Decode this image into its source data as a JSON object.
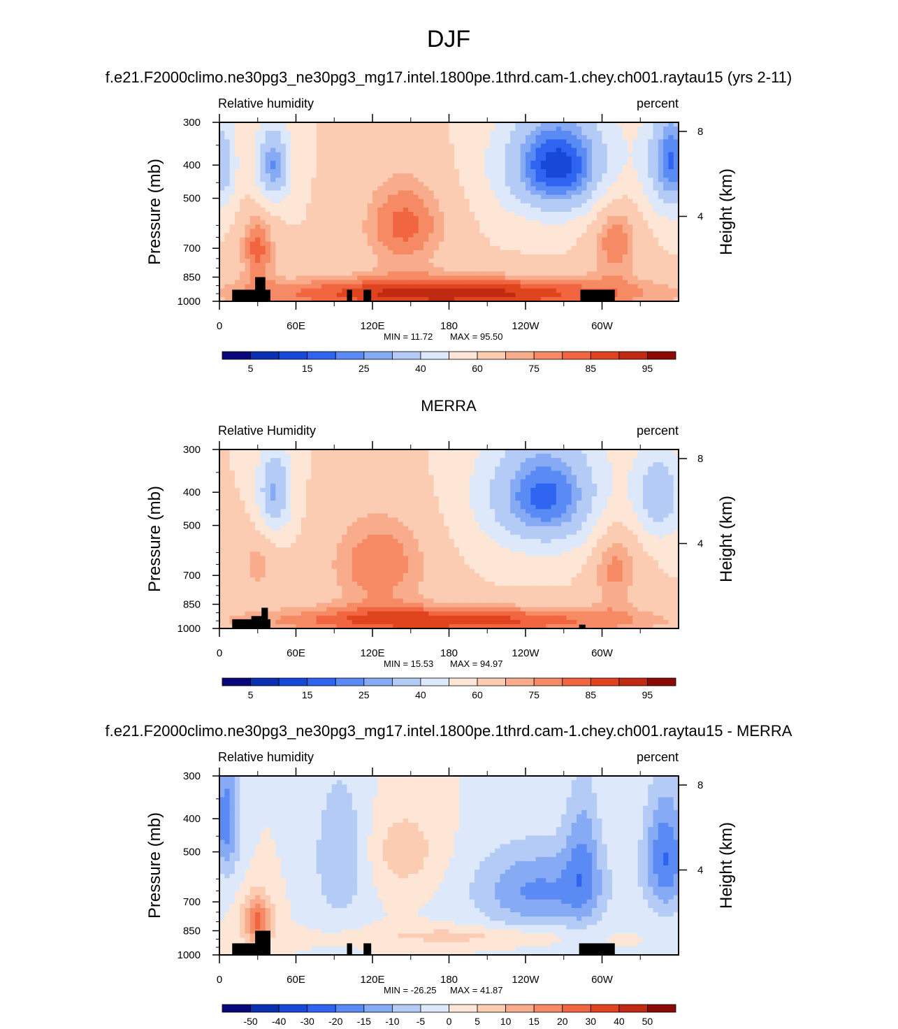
{
  "figure": {
    "title": "DJF",
    "colors": {
      "background": "#ffffff",
      "frame": "#000000",
      "topography": "#000000"
    }
  },
  "chart_data": [
    {
      "type": "heatmap",
      "panel_title": "f.e21.F2000climo.ne30pg3_ne30pg3_mg17.intel.1800pe.1thrd.cam-1.chey.ch001.raytau15 (yrs 2-11)",
      "left_label": "Relative humidity",
      "right_label": "percent",
      "ylabel": "Pressure (mb)",
      "ylabel_right": "Height (km)",
      "x_ticks": [
        "0",
        "60E",
        "120E",
        "180",
        "120W",
        "60W"
      ],
      "x_tick_lon": [
        0,
        60,
        120,
        180,
        240,
        300
      ],
      "xlim": [
        0,
        360
      ],
      "y_ticks": [
        "300",
        "400",
        "500",
        "700",
        "850",
        "1000"
      ],
      "y_tick_values": [
        300,
        400,
        500,
        700,
        850,
        1000
      ],
      "ylim": [
        1000,
        300
      ],
      "height_ticks": [
        "8",
        "4"
      ],
      "height_tick_km": [
        8,
        4
      ],
      "min_label": "MIN =  11.72",
      "max_label": "MAX =  95.50",
      "colorbar_ticks": [
        "5",
        "15",
        "25",
        "40",
        "60",
        "75",
        "85",
        "95"
      ],
      "colorbar_tick_index": [
        1,
        3,
        5,
        7,
        9,
        11,
        13,
        15
      ],
      "colorbar_colors": [
        "#08087a",
        "#0a2fb0",
        "#1848d8",
        "#2e64f0",
        "#5a8af4",
        "#86aaf4",
        "#b4cbf6",
        "#dde9fa",
        "#fde6d6",
        "#fbcbb2",
        "#f8ac8c",
        "#f68a64",
        "#f16540",
        "#e0441f",
        "#c02a12",
        "#8c0a06"
      ],
      "field_levels": [
        0,
        5,
        10,
        15,
        20,
        25,
        30,
        40,
        50,
        60,
        70,
        75,
        80,
        85,
        90,
        95,
        100
      ],
      "description_features": [
        {
          "lon": 265,
          "p": 400,
          "value": 12,
          "sx": 32,
          "sp": 110
        },
        {
          "lon": 355,
          "p": 390,
          "value": 20,
          "sx": 14,
          "sp": 110
        },
        {
          "lon": 42,
          "p": 400,
          "value": 24,
          "sx": 10,
          "sp": 80
        },
        {
          "lon": 2,
          "p": 400,
          "value": 30,
          "sx": 8,
          "sp": 90
        },
        {
          "lon": 145,
          "p": 600,
          "value": 82,
          "sx": 25,
          "sp": 140
        },
        {
          "lon": 310,
          "p": 650,
          "value": 80,
          "sx": 14,
          "sp": 140
        },
        {
          "lon": 30,
          "p": 700,
          "value": 82,
          "sx": 10,
          "sp": 120
        },
        {
          "lon": 180,
          "p": 950,
          "value": 93,
          "sx": 120,
          "sp": 80
        }
      ],
      "base_value": 60,
      "topography": [
        {
          "lon0": 10,
          "lon1": 40,
          "p_top": 925
        },
        {
          "lon0": 28,
          "lon1": 36,
          "p_top": 850
        },
        {
          "lon0": 100,
          "lon1": 104,
          "p_top": 925
        },
        {
          "lon0": 113,
          "lon1": 119,
          "p_top": 925
        },
        {
          "lon0": 283,
          "lon1": 310,
          "p_top": 925
        }
      ]
    },
    {
      "type": "heatmap",
      "panel_title": "MERRA",
      "left_label": "Relative Humidity",
      "right_label": "percent",
      "ylabel": "Pressure (mb)",
      "ylabel_right": "Height (km)",
      "x_ticks": [
        "0",
        "60E",
        "120E",
        "180",
        "120W",
        "60W"
      ],
      "x_tick_lon": [
        0,
        60,
        120,
        180,
        240,
        300
      ],
      "xlim": [
        0,
        360
      ],
      "y_ticks": [
        "300",
        "400",
        "500",
        "700",
        "850",
        "1000"
      ],
      "y_tick_values": [
        300,
        400,
        500,
        700,
        850,
        1000
      ],
      "ylim": [
        1000,
        300
      ],
      "height_ticks": [
        "8",
        "4"
      ],
      "height_tick_km": [
        8,
        4
      ],
      "min_label": "MIN =  15.53",
      "max_label": "MAX =  94.97",
      "colorbar_ticks": [
        "5",
        "15",
        "25",
        "40",
        "60",
        "75",
        "85",
        "95"
      ],
      "colorbar_tick_index": [
        1,
        3,
        5,
        7,
        9,
        11,
        13,
        15
      ],
      "colorbar_colors": [
        "#08087a",
        "#0a2fb0",
        "#1848d8",
        "#2e64f0",
        "#5a8af4",
        "#86aaf4",
        "#b4cbf6",
        "#dde9fa",
        "#fde6d6",
        "#fbcbb2",
        "#f8ac8c",
        "#f68a64",
        "#f16540",
        "#e0441f",
        "#c02a12",
        "#8c0a06"
      ],
      "field_levels": [
        0,
        5,
        10,
        15,
        20,
        25,
        30,
        40,
        50,
        60,
        70,
        75,
        80,
        85,
        90,
        95,
        100
      ],
      "description_features": [
        {
          "lon": 255,
          "p": 410,
          "value": 18,
          "sx": 35,
          "sp": 120
        },
        {
          "lon": 345,
          "p": 410,
          "value": 32,
          "sx": 14,
          "sp": 90
        },
        {
          "lon": 43,
          "p": 400,
          "value": 28,
          "sx": 10,
          "sp": 90
        },
        {
          "lon": 125,
          "p": 650,
          "value": 80,
          "sx": 30,
          "sp": 160
        },
        {
          "lon": 310,
          "p": 650,
          "value": 78,
          "sx": 14,
          "sp": 150
        },
        {
          "lon": 30,
          "p": 650,
          "value": 72,
          "sx": 12,
          "sp": 120
        },
        {
          "lon": 180,
          "p": 950,
          "value": 88,
          "sx": 120,
          "sp": 70
        }
      ],
      "base_value": 60,
      "topography": [
        {
          "lon0": 10,
          "lon1": 40,
          "p_top": 940
        },
        {
          "lon0": 25,
          "lon1": 35,
          "p_top": 920
        },
        {
          "lon0": 33,
          "lon1": 38,
          "p_top": 870
        },
        {
          "lon0": 282,
          "lon1": 287,
          "p_top": 975
        }
      ]
    },
    {
      "type": "heatmap",
      "panel_title": "f.e21.F2000climo.ne30pg3_ne30pg3_mg17.intel.1800pe.1thrd.cam-1.chey.ch001.raytau15 - MERRA",
      "left_label": "Relative humidity",
      "right_label": "percent",
      "ylabel": "Pressure (mb)",
      "ylabel_right": "Height (km)",
      "x_ticks": [
        "0",
        "60E",
        "120E",
        "180",
        "120W",
        "60W"
      ],
      "x_tick_lon": [
        0,
        60,
        120,
        180,
        240,
        300
      ],
      "xlim": [
        0,
        360
      ],
      "y_ticks": [
        "300",
        "400",
        "500",
        "700",
        "850",
        "1000"
      ],
      "y_tick_values": [
        300,
        400,
        500,
        700,
        850,
        1000
      ],
      "ylim": [
        1000,
        300
      ],
      "height_ticks": [
        "8",
        "4"
      ],
      "height_tick_km": [
        8,
        4
      ],
      "min_label": "MIN = -26.25",
      "max_label": "MAX =  41.87",
      "colorbar_ticks": [
        "-50",
        "-40",
        "-30",
        "-20",
        "-15",
        "-10",
        "-5",
        "0",
        "5",
        "10",
        "15",
        "20",
        "30",
        "40",
        "50"
      ],
      "colorbar_tick_index": [
        1,
        2,
        3,
        4,
        5,
        6,
        7,
        8,
        9,
        10,
        11,
        12,
        13,
        14,
        15
      ],
      "colorbar_colors": [
        "#08087a",
        "#0a2fb0",
        "#1848d8",
        "#2e64f0",
        "#5a8af4",
        "#86aaf4",
        "#b4cbf6",
        "#dde9fa",
        "#fde6d6",
        "#fbcbb2",
        "#f8ac8c",
        "#f68a64",
        "#f16540",
        "#e0441f",
        "#c02a12",
        "#8c0a06"
      ],
      "field_levels": [
        -60,
        -50,
        -40,
        -30,
        -20,
        -15,
        -10,
        -5,
        0,
        5,
        10,
        15,
        20,
        30,
        40,
        50,
        60
      ],
      "description_features": [
        {
          "lon": 250,
          "p": 650,
          "value": -16,
          "sx": 35,
          "sp": 130
        },
        {
          "lon": 350,
          "p": 520,
          "value": -20,
          "sx": 12,
          "sp": 150
        },
        {
          "lon": 5,
          "p": 400,
          "value": -18,
          "sx": 8,
          "sp": 120
        },
        {
          "lon": 95,
          "p": 520,
          "value": -10,
          "sx": 15,
          "sp": 180
        },
        {
          "lon": 285,
          "p": 520,
          "value": -12,
          "sx": 10,
          "sp": 180
        },
        {
          "lon": 30,
          "p": 800,
          "value": 22,
          "sx": 8,
          "sp": 100
        },
        {
          "lon": 145,
          "p": 500,
          "value": 8,
          "sx": 20,
          "sp": 100
        },
        {
          "lon": 190,
          "p": 880,
          "value": 7,
          "sx": 60,
          "sp": 40
        }
      ],
      "base_value": 0,
      "topography": [
        {
          "lon0": 10,
          "lon1": 40,
          "p_top": 925
        },
        {
          "lon0": 28,
          "lon1": 40,
          "p_top": 850
        },
        {
          "lon0": 100,
          "lon1": 104,
          "p_top": 925
        },
        {
          "lon0": 113,
          "lon1": 119,
          "p_top": 925
        },
        {
          "lon0": 282,
          "lon1": 310,
          "p_top": 925
        }
      ]
    }
  ]
}
